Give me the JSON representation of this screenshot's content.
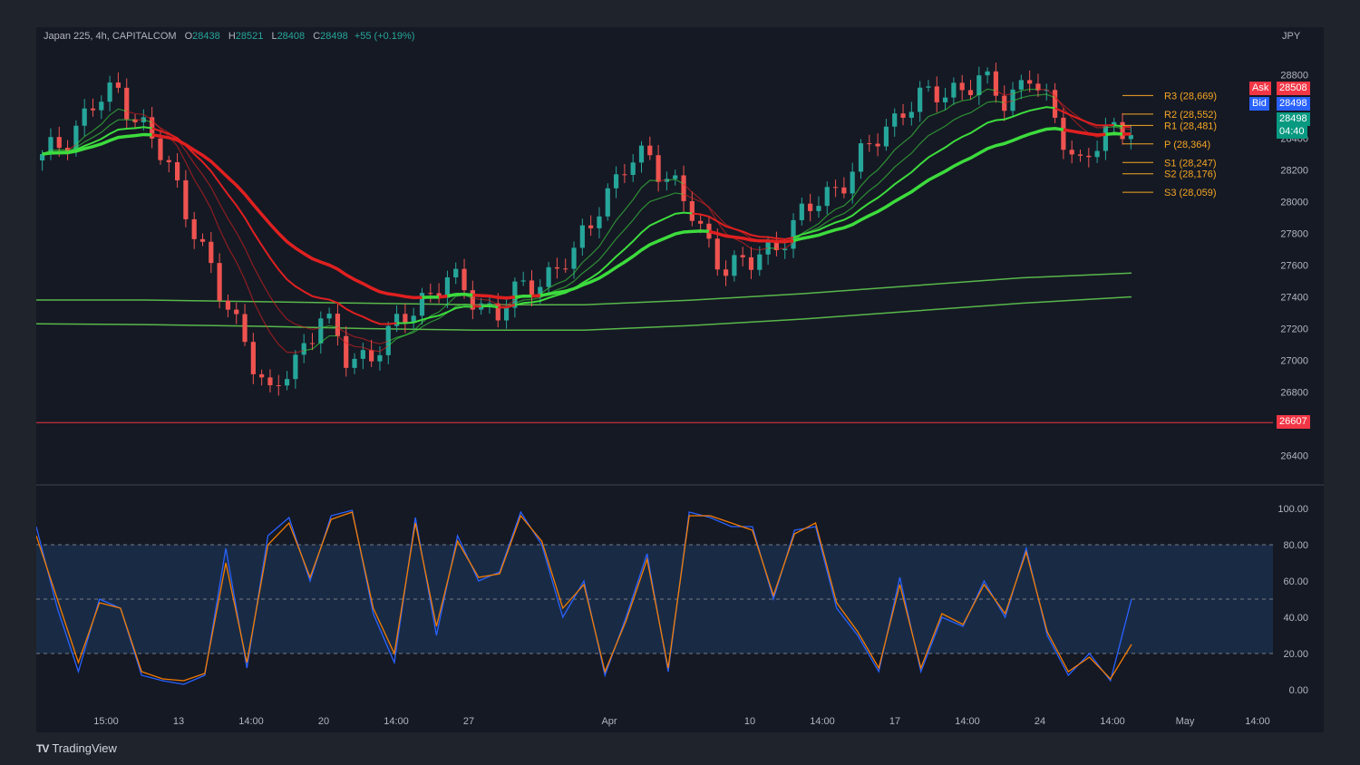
{
  "header": {
    "symbol": "Japan 225, 4h, CAPITALCOM",
    "o_label": "O",
    "o": "28438",
    "h_label": "H",
    "h": "28521",
    "l_label": "L",
    "l": "28408",
    "c_label": "C",
    "c": "28498",
    "change": "+55 (+0.19%)"
  },
  "currency": "JPY",
  "brand": "TradingView",
  "tags": {
    "ask_label": "Ask",
    "ask": "28508",
    "bid_label": "Bid",
    "bid": "28498",
    "last": "28498",
    "countdown": "04:40",
    "support_line": "26607"
  },
  "colors": {
    "up": "#26a69a",
    "down": "#ef5350",
    "ema_green": "#3ddc3d",
    "ema_red": "#e02020",
    "pivot": "#f5a623",
    "stoch_k": "#2962ff",
    "stoch_d": "#f57c00"
  },
  "chart_data": [
    {
      "type": "candlestick",
      "title": "Japan 225, 4h, CAPITALCOM",
      "y_unit": "JPY",
      "ylim": [
        26250,
        29000
      ],
      "y_ticks": [
        "28800",
        "28600",
        "28400",
        "28200",
        "28000",
        "27800",
        "27600",
        "27400",
        "27200",
        "27000",
        "26800",
        "26600",
        "26400"
      ],
      "x_ticks": [
        "15:00",
        "13",
        "14:00",
        "20",
        "14:00",
        "27",
        "Apr",
        "10",
        "14:00",
        "17",
        "14:00",
        "24",
        "14:00",
        "May",
        "14:00"
      ],
      "horizontal_line": 26607,
      "close_path": [
        28260,
        28420,
        28600,
        28700,
        28470,
        28200,
        27850,
        27400,
        27150,
        26750,
        27000,
        27300,
        27000,
        27050,
        27200,
        27400,
        27500,
        27400,
        27300,
        27450,
        27550,
        27650,
        28000,
        28200,
        28300,
        28100,
        27800,
        27600,
        27600,
        27750,
        27900,
        28050,
        28200,
        28400,
        28600,
        28650,
        28720,
        28750,
        28650,
        28800,
        28500,
        28250,
        28400,
        28500
      ],
      "pivots": [
        {
          "label": "R3 (28,669)",
          "value": 28669
        },
        {
          "label": "R2 (28,552)",
          "value": 28552
        },
        {
          "label": "R1 (28,481)",
          "value": 28481
        },
        {
          "label": "P (28,364)",
          "value": 28364
        },
        {
          "label": "S1 (28,247)",
          "value": 28247
        },
        {
          "label": "S2 (28,176)",
          "value": 28176
        },
        {
          "label": "S3 (28,059)",
          "value": 28059
        }
      ],
      "long_ma": [
        {
          "name": "",
          "values": [
            27380,
            27380,
            27370,
            27360,
            27350,
            27350,
            27380,
            27420,
            27470,
            27520,
            27550
          ]
        },
        {
          "name": "",
          "values": [
            27230,
            27225,
            27215,
            27200,
            27190,
            27190,
            27220,
            27260,
            27310,
            27360,
            27400
          ]
        }
      ]
    },
    {
      "type": "line",
      "title": "",
      "ylim": [
        0,
        100
      ],
      "y_ticks": [
        "100.00",
        "80.00",
        "60.00",
        "40.00",
        "20.00",
        "0.00"
      ],
      "bands": [
        20,
        50,
        80
      ],
      "series": [
        {
          "name": "",
          "values": [
            90,
            45,
            10,
            50,
            45,
            8,
            5,
            3,
            8,
            78,
            12,
            85,
            95,
            60,
            96,
            99,
            42,
            15,
            95,
            30,
            85,
            60,
            65,
            98,
            80,
            40,
            60,
            8,
            40,
            75,
            10,
            98,
            95,
            90,
            90,
            50,
            88,
            90,
            45,
            30,
            10,
            62,
            10,
            40,
            35,
            60,
            40,
            78,
            30,
            8,
            20,
            5,
            50
          ]
        },
        {
          "name": "",
          "values": [
            85,
            50,
            15,
            48,
            45,
            10,
            6,
            5,
            9,
            70,
            15,
            80,
            92,
            62,
            94,
            98,
            45,
            20,
            92,
            35,
            82,
            62,
            64,
            96,
            82,
            45,
            58,
            10,
            38,
            72,
            12,
            96,
            96,
            92,
            88,
            52,
            86,
            92,
            48,
            32,
            12,
            58,
            12,
            42,
            36,
            58,
            42,
            76,
            32,
            10,
            18,
            6,
            25
          ]
        }
      ]
    }
  ]
}
